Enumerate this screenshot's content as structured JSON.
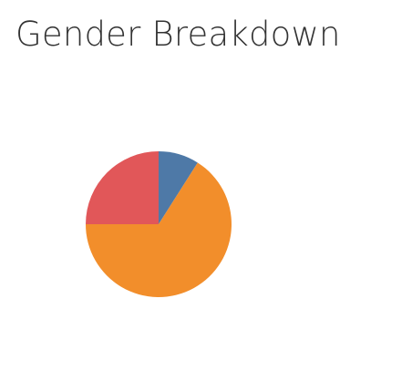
{
  "chart_data": {
    "type": "pie",
    "title": "Gender Breakdown",
    "slices": [
      {
        "value": 9,
        "color": "#4e79a7"
      },
      {
        "value": 66,
        "color": "#f28e2b"
      },
      {
        "value": 25,
        "color": "#e15759"
      }
    ],
    "legend": "none"
  }
}
